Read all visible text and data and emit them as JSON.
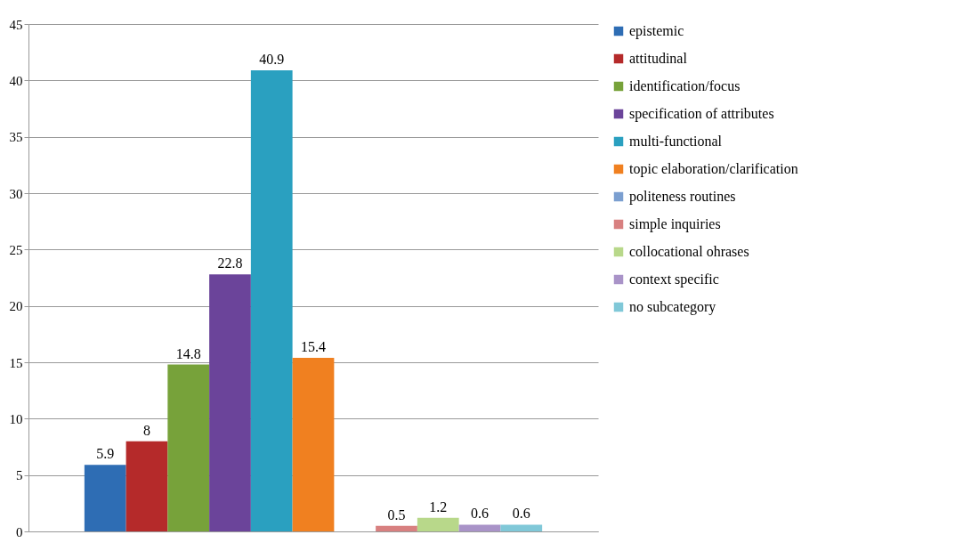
{
  "chart_data": {
    "type": "bar",
    "categories": [
      null
    ],
    "series": [
      {
        "name": "epistemic",
        "color": "#2e6db4",
        "values": [
          5.9
        ]
      },
      {
        "name": "attitudinal",
        "color": "#b52a2a",
        "values": [
          8
        ]
      },
      {
        "name": "identification/focus",
        "color": "#77a23a",
        "values": [
          14.8
        ]
      },
      {
        "name": "specification of attributes",
        "color": "#6b449a",
        "values": [
          22.8
        ]
      },
      {
        "name": "multi-functional",
        "color": "#2aa0c0",
        "values": [
          40.9
        ]
      },
      {
        "name": "topic elaboration/clarification",
        "color": "#f08020",
        "values": [
          15.4
        ]
      },
      {
        "name": "politeness routines",
        "color": "#7b9fd0",
        "values": [
          null
        ]
      },
      {
        "name": "simple inquiries",
        "color": "#d88080",
        "values": [
          0.5
        ]
      },
      {
        "name": "collocational ohrases",
        "color": "#b8d88a",
        "values": [
          1.2
        ]
      },
      {
        "name": "context specific",
        "color": "#a993c8",
        "values": [
          0.6
        ]
      },
      {
        "name": "no subcategory",
        "color": "#80c8d8",
        "values": [
          0.6
        ]
      }
    ],
    "ylim": [
      0,
      45
    ],
    "yticks": [
      0,
      5,
      10,
      15,
      20,
      25,
      30,
      35,
      40,
      45
    ],
    "grid": "y",
    "legend": "right",
    "data_labels": true
  }
}
